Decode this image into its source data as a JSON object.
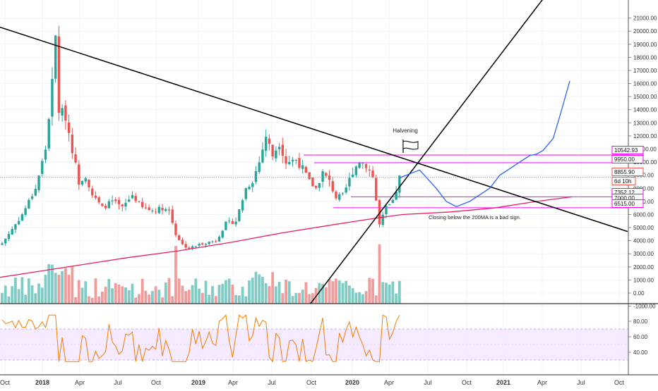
{
  "chart_data": {
    "type": "candlestick",
    "main_y_ticks": [
      "21000.00",
      "20000.00",
      "19000.00",
      "18000.00",
      "17000.00",
      "16000.00",
      "15000.00",
      "14000.00",
      "13000.00",
      "12000.00",
      "11000.00",
      "10000.00",
      "9000.00",
      "8000.00",
      "7000.00",
      "6000.00",
      "5000.00",
      "4000.00",
      "3000.00",
      "2000.00",
      "1000.00",
      "0.00",
      "-1000.00"
    ],
    "rsi_y_ticks": [
      "80.00",
      "60.00",
      "40.00"
    ],
    "x_ticks": [
      "Oct",
      "2018",
      "Apr",
      "Jul",
      "Oct",
      "2019",
      "Apr",
      "Jul",
      "Oct",
      "2020",
      "Apr",
      "Jul",
      "Oct",
      "2021",
      "Apr",
      "Jul",
      "Oct"
    ],
    "price_labels": [
      {
        "text": "10542.93",
        "color": "#ff00ff"
      },
      {
        "text": "9950.00",
        "color": "#ff00ff"
      },
      {
        "text": "8855.90",
        "color": "#ef5350"
      },
      {
        "text": "6d 10h",
        "color": "#ef5350"
      },
      {
        "text": "7352.12",
        "color": "#ff00ff"
      },
      {
        "text": "7000.00",
        "color": "#ff00ff"
      },
      {
        "text": "6515.00",
        "color": "#ff00ff"
      }
    ],
    "annotations": [
      "Halvening",
      "Closing below the 200MA is a bad sign."
    ],
    "colors": {
      "up": "#26a69a",
      "down": "#ef5350",
      "vol_up": "#80cbc4",
      "vol_down": "#f19b9b",
      "ma200": "#e91e63",
      "projection": "#2962ff",
      "levels": "#ff00ff",
      "rsi": "#f57c00",
      "rsi_band": "#f3e5ff",
      "trend": "#000000"
    },
    "series_summary": {
      "instrument_price_path": [
        [
          0,
          3800
        ],
        [
          6,
          6000
        ],
        [
          10,
          8000
        ],
        [
          13,
          11000
        ],
        [
          15,
          16000
        ],
        [
          16,
          19500
        ],
        [
          17,
          14000
        ],
        [
          19,
          13500
        ],
        [
          21,
          11000
        ],
        [
          23,
          8500
        ],
        [
          25,
          9000
        ],
        [
          27,
          7500
        ],
        [
          30,
          6500
        ],
        [
          33,
          7000
        ],
        [
          36,
          6500
        ],
        [
          39,
          7500
        ],
        [
          42,
          6500
        ],
        [
          45,
          6300
        ],
        [
          48,
          6500
        ],
        [
          50,
          6300
        ],
        [
          52,
          4500
        ],
        [
          54,
          3700
        ],
        [
          56,
          3400
        ],
        [
          60,
          3800
        ],
        [
          64,
          4000
        ],
        [
          67,
          5300
        ],
        [
          70,
          5500
        ],
        [
          73,
          8000
        ],
        [
          75,
          8600
        ],
        [
          77,
          10000
        ],
        [
          79,
          12000
        ],
        [
          81,
          10500
        ],
        [
          83,
          11500
        ],
        [
          85,
          10000
        ],
        [
          88,
          10200
        ],
        [
          90,
          9500
        ],
        [
          92,
          8500
        ],
        [
          94,
          8000
        ],
        [
          96,
          9200
        ],
        [
          98,
          8500
        ],
        [
          100,
          7300
        ],
        [
          102,
          7400
        ],
        [
          105,
          9300
        ],
        [
          107,
          10100
        ],
        [
          109,
          9800
        ],
        [
          111,
          8900
        ],
        [
          113,
          5200
        ],
        [
          115,
          6500
        ],
        [
          117,
          6900
        ],
        [
          119,
          8800
        ]
      ],
      "projection_path": [
        [
          119,
          8800
        ],
        [
          125,
          9400
        ],
        [
          130,
          8000
        ],
        [
          133,
          7000
        ],
        [
          136,
          6600
        ],
        [
          140,
          7000
        ],
        [
          143,
          7500
        ],
        [
          146,
          8000
        ],
        [
          149,
          9000
        ],
        [
          152,
          9500
        ],
        [
          155,
          10000
        ],
        [
          158,
          10500
        ],
        [
          160,
          10600
        ],
        [
          162,
          10900
        ],
        [
          165,
          11800
        ],
        [
          167,
          13500
        ],
        [
          170,
          16200
        ]
      ]
    }
  }
}
